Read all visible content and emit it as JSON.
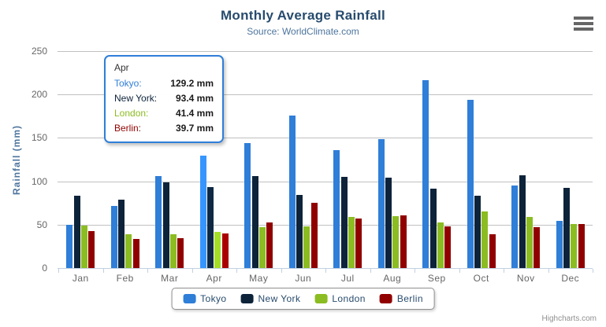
{
  "chart_data": {
    "type": "bar",
    "title": "Monthly Average Rainfall",
    "subtitle": "Source: WorldClimate.com",
    "xlabel": "",
    "ylabel": "Rainfall (mm)",
    "ylim": [
      0,
      250
    ],
    "yticks": [
      0,
      50,
      100,
      150,
      200,
      250
    ],
    "grid": true,
    "legend_position": "bottom",
    "categories": [
      "Jan",
      "Feb",
      "Mar",
      "Apr",
      "May",
      "Jun",
      "Jul",
      "Aug",
      "Sep",
      "Oct",
      "Nov",
      "Dec"
    ],
    "series": [
      {
        "name": "Tokyo",
        "color": "#2f7ed8",
        "values": [
          49.9,
          71.5,
          106.4,
          129.2,
          144.0,
          176.0,
          135.6,
          148.5,
          216.4,
          194.1,
          95.6,
          54.4
        ]
      },
      {
        "name": "New York",
        "color": "#0d233a",
        "values": [
          83.6,
          78.8,
          98.5,
          93.4,
          106.0,
          84.5,
          105.0,
          104.3,
          91.2,
          83.5,
          106.6,
          92.3
        ]
      },
      {
        "name": "London",
        "color": "#8bbc21",
        "values": [
          48.9,
          38.8,
          39.3,
          41.4,
          47.0,
          48.3,
          59.0,
          59.6,
          52.4,
          65.2,
          59.3,
          51.2
        ]
      },
      {
        "name": "Berlin",
        "color": "#910000",
        "values": [
          42.4,
          33.2,
          34.5,
          39.7,
          52.6,
          75.5,
          57.4,
          60.4,
          47.6,
          39.1,
          46.8,
          51.1
        ]
      }
    ]
  },
  "tooltip": {
    "category": "Apr",
    "rows": [
      {
        "series": "Tokyo",
        "value": "129.2 mm"
      },
      {
        "series": "New York",
        "value": "93.4 mm"
      },
      {
        "series": "London",
        "value": "41.4 mm"
      },
      {
        "series": "Berlin",
        "value": "39.7 mm"
      }
    ]
  },
  "credits": "Highcharts.com",
  "icons": {
    "context_menu": "hamburger-icon"
  },
  "colors": {
    "title": "#274b6d",
    "subtitle": "#4d759e",
    "axis_label": "#666666",
    "y_axis_title": "#4d759e",
    "grid_line": "#c0c0c0",
    "axis_line": "#c0d0e0",
    "legend_text": "#274b6d",
    "legend_border": "#909090",
    "tooltip_border": "#2f7ed8",
    "credits_text": "#909090"
  }
}
